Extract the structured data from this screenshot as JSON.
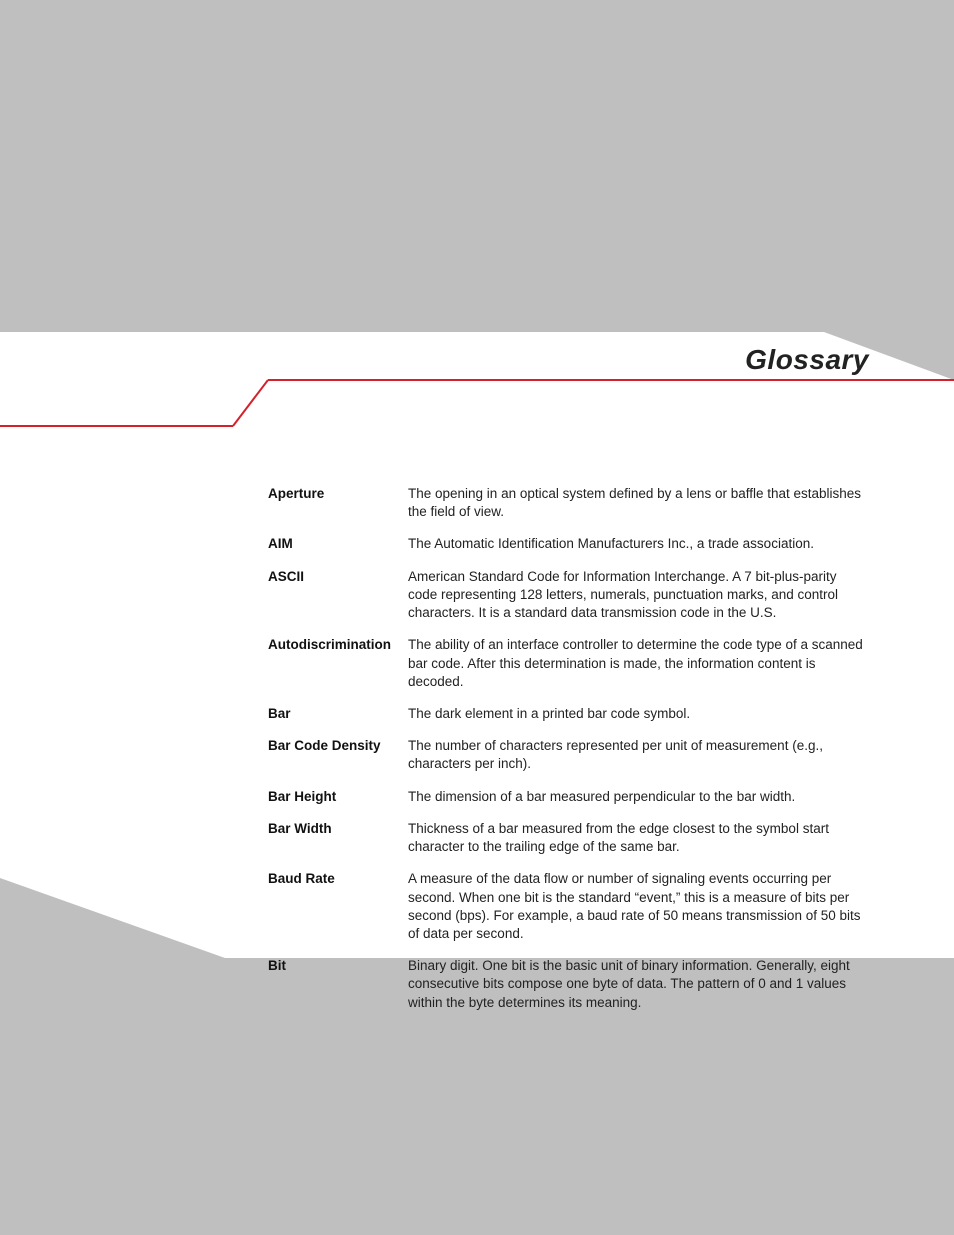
{
  "page": {
    "section_title": "Glossary",
    "background_color": "#bfbfbf",
    "panel_color": "#ffffff",
    "rule_color": "#d4212c",
    "text_color": "#222222",
    "term_font_weight": 700,
    "body_font_size_pt": 10
  },
  "glossary": [
    {
      "term": "Aperture",
      "definition": "The opening in an optical system defined by a lens or baffle that establishes the field of view."
    },
    {
      "term": "AIM",
      "definition": "The Automatic Identification Manufacturers Inc., a trade association."
    },
    {
      "term": "ASCII",
      "definition": "American Standard Code for Information Interchange. A 7 bit-plus-parity code representing 128 letters, numerals, punctuation marks, and control characters. It is a standard data transmission code in the U.S."
    },
    {
      "term": "Autodiscrimination",
      "definition": "The ability of an interface controller to determine the code type of a scanned bar code. After this determination is made, the information content is decoded."
    },
    {
      "term": "Bar",
      "definition": "The dark element in a printed bar code symbol."
    },
    {
      "term": "Bar Code Density",
      "definition": "The number of characters represented per unit of measurement (e.g., characters per inch)."
    },
    {
      "term": "Bar Height",
      "definition": "The dimension of a bar measured perpendicular to the bar width."
    },
    {
      "term": "Bar Width",
      "definition": "Thickness of a bar measured from the edge closest to the symbol start character to the trailing edge of the same bar."
    },
    {
      "term": "Baud Rate",
      "definition": "A measure of the data flow or number of signaling events occurring per second. When one bit is the standard “event,” this is a measure of bits per second (bps). For example, a baud rate of 50 means transmission of 50 bits of data per second."
    },
    {
      "term": "Bit",
      "definition": "Binary digit. One bit is the basic unit of binary information. Generally, eight consecutive bits compose one byte of data. The pattern of 0 and 1 values within the byte determines its meaning."
    }
  ]
}
